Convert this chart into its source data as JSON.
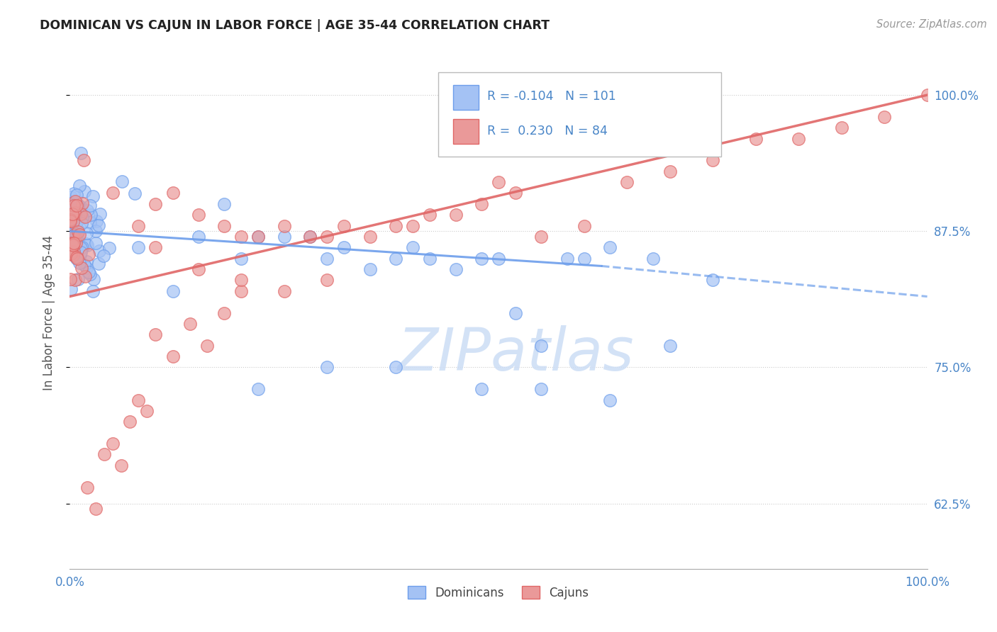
{
  "title": "DOMINICAN VS CAJUN IN LABOR FORCE | AGE 35-44 CORRELATION CHART",
  "source": "Source: ZipAtlas.com",
  "ylabel": "In Labor Force | Age 35-44",
  "xlim": [
    0.0,
    1.0
  ],
  "ylim": [
    0.565,
    1.035
  ],
  "yticks": [
    0.625,
    0.75,
    0.875,
    1.0
  ],
  "ytick_labels": [
    "62.5%",
    "75.0%",
    "87.5%",
    "100.0%"
  ],
  "xtick_labels": [
    "0.0%",
    "100.0%"
  ],
  "dominican_R": -0.104,
  "dominican_N": 101,
  "cajun_R": 0.23,
  "cajun_N": 84,
  "dominican_color": "#a4c2f4",
  "cajun_color": "#ea9999",
  "dominican_edge": "#6d9eeb",
  "cajun_edge": "#e06666",
  "trend_dom_color": "#6d9eeb",
  "trend_caj_color": "#e06666",
  "label_color": "#4a86c8",
  "background_color": "#ffffff",
  "grid_color": "#cccccc",
  "watermark_color": "#ccddf5",
  "dom_trend_solid_end": 0.62,
  "dom_trend_start_y": 0.875,
  "dom_trend_end_y": 0.843,
  "dom_trend_full_end_y": 0.815,
  "caj_trend_start_y": 0.815,
  "caj_trend_end_y": 1.0
}
